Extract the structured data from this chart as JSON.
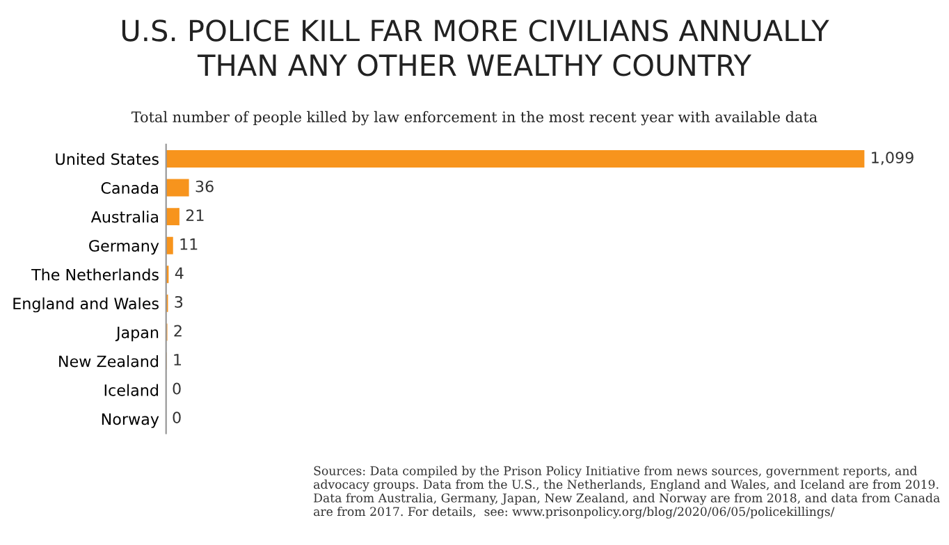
{
  "chart_data": {
    "type": "bar",
    "orientation": "horizontal",
    "title": "U.S. POLICE KILL FAR MORE CIVILIANS ANNUALLY\nTHAN ANY OTHER WEALTHY COUNTRY",
    "subtitle": "Total number of people killed by law enforcement in the most recent year with available data",
    "categories": [
      "United States",
      "Canada",
      "Australia",
      "Germany",
      "The Netherlands",
      "England and Wales",
      "Japan",
      "New Zealand",
      "Iceland",
      "Norway"
    ],
    "values": [
      1099,
      36,
      21,
      11,
      4,
      3,
      2,
      1,
      0,
      0
    ],
    "value_labels": [
      "1,099",
      "36",
      "21",
      "11",
      "4",
      "3",
      "2",
      "1",
      "0",
      "0"
    ],
    "color": "#f7941d",
    "grid": false,
    "legend": false,
    "tick_labels": "y",
    "annotations": [
      "Sources: Data compiled by the Prison Policy Initiative from news sources, government reports, and advocacy groups. Data from the U.S., the Netherlands, England and Wales, and Iceland are from 2019. Data from Australia, Germany, Japan, New Zealand, and Norway are from 2018, and data from Canada are from 2017. For details,  see: www.prisonpolicy.org/blog/2020/06/05/policekillings/"
    ]
  }
}
